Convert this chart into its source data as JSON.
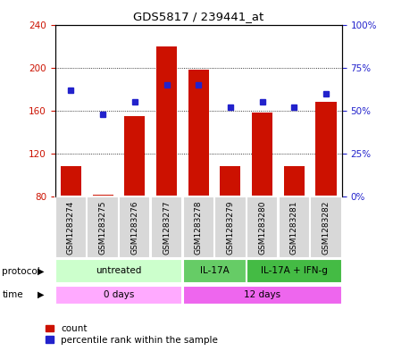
{
  "title": "GDS5817 / 239441_at",
  "samples": [
    "GSM1283274",
    "GSM1283275",
    "GSM1283276",
    "GSM1283277",
    "GSM1283278",
    "GSM1283279",
    "GSM1283280",
    "GSM1283281",
    "GSM1283282"
  ],
  "counts": [
    108,
    82,
    155,
    220,
    198,
    108,
    158,
    108,
    168
  ],
  "percentiles": [
    62,
    48,
    55,
    65,
    65,
    52,
    55,
    52,
    60
  ],
  "ymin": 80,
  "ymax": 240,
  "yticks_left": [
    80,
    120,
    160,
    200,
    240
  ],
  "yticks_right": [
    0,
    25,
    50,
    75,
    100
  ],
  "bar_color": "#cc1100",
  "dot_color": "#2222cc",
  "sample_box_color": "#d8d8d8",
  "protocol_groups": [
    {
      "label": "untreated",
      "start": 0,
      "end": 4,
      "color": "#ccffcc"
    },
    {
      "label": "IL-17A",
      "start": 4,
      "end": 6,
      "color": "#66cc66"
    },
    {
      "label": "IL-17A + IFN-g",
      "start": 6,
      "end": 9,
      "color": "#44bb44"
    }
  ],
  "time_groups": [
    {
      "label": "0 days",
      "start": 0,
      "end": 4,
      "color": "#ffaaff"
    },
    {
      "label": "12 days",
      "start": 4,
      "end": 9,
      "color": "#ee66ee"
    }
  ],
  "legend_count_label": "count",
  "legend_pct_label": "percentile rank within the sample",
  "protocol_label": "protocol",
  "time_label": "time"
}
